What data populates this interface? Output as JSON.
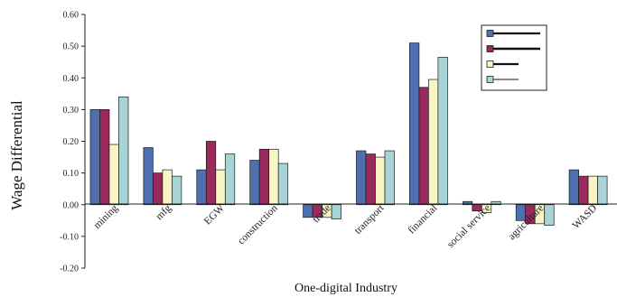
{
  "chart_data": {
    "type": "bar",
    "title": "",
    "xlabel": "One-digital Industry",
    "ylabel": "Wage Differential",
    "ylim": [
      -0.2,
      0.6
    ],
    "yticks": [
      -0.2,
      -0.1,
      0.0,
      0.1,
      0.2,
      0.3,
      0.4,
      0.5,
      0.6
    ],
    "ytick_labels": [
      "-0.20",
      "-0.10",
      "0.00",
      "0.10",
      "0.20",
      "0.30",
      "0.40",
      "0.50",
      "0.60"
    ],
    "grid": false,
    "legend_position": "top-right",
    "categories": [
      "mining",
      "mfg",
      "EGW",
      "construction",
      "trade",
      "transport",
      "financial",
      "social service",
      "agriculture",
      "WASD"
    ],
    "series": [
      {
        "color": "#4f6fae",
        "values": [
          0.3,
          0.18,
          0.11,
          0.14,
          -0.04,
          0.17,
          0.51,
          0.01,
          -0.05,
          0.11
        ]
      },
      {
        "color": "#9a2a5c",
        "values": [
          0.3,
          0.1,
          0.2,
          0.175,
          -0.04,
          0.16,
          0.37,
          -0.02,
          -0.06,
          0.09
        ]
      },
      {
        "color": "#f8f4c4",
        "values": [
          0.19,
          0.11,
          0.11,
          0.175,
          -0.04,
          0.15,
          0.395,
          -0.025,
          -0.06,
          0.09
        ]
      },
      {
        "color": "#a8d4d8",
        "values": [
          0.34,
          0.09,
          0.16,
          0.13,
          -0.045,
          0.17,
          0.465,
          0.01,
          -0.065,
          0.09
        ]
      }
    ]
  }
}
